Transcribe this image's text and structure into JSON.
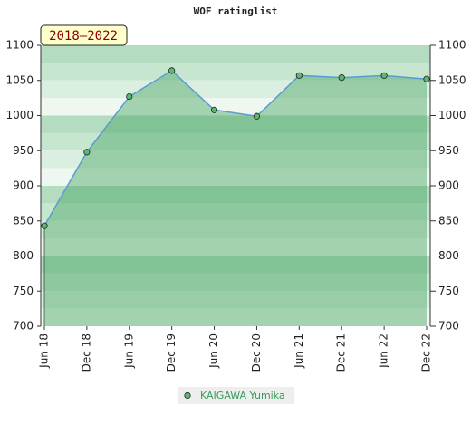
{
  "chart_data": {
    "type": "area",
    "title": "WOF ratinglist",
    "badge": "2018–2022",
    "categories": [
      "Jun 18",
      "Dec 18",
      "Jun 19",
      "Dec 19",
      "Jun 20",
      "Dec 20",
      "Jun 21",
      "Dec 21",
      "Jun 22",
      "Dec 22"
    ],
    "series": [
      {
        "name": "KAIGAWA Yumika",
        "color": "#5b9bd5",
        "marker_color": "#5cb870",
        "values": [
          843,
          948,
          1027,
          1064,
          1008,
          999,
          1057,
          1054,
          1057,
          1052
        ]
      }
    ],
    "ylim": [
      700,
      1100
    ],
    "yticks": [
      700,
      750,
      800,
      850,
      900,
      950,
      1000,
      1050,
      1100
    ],
    "y2lim": [
      700,
      1100
    ],
    "y2ticks": [
      700,
      750,
      800,
      850,
      900,
      950,
      1000,
      1050,
      1100
    ],
    "grid": false
  }
}
